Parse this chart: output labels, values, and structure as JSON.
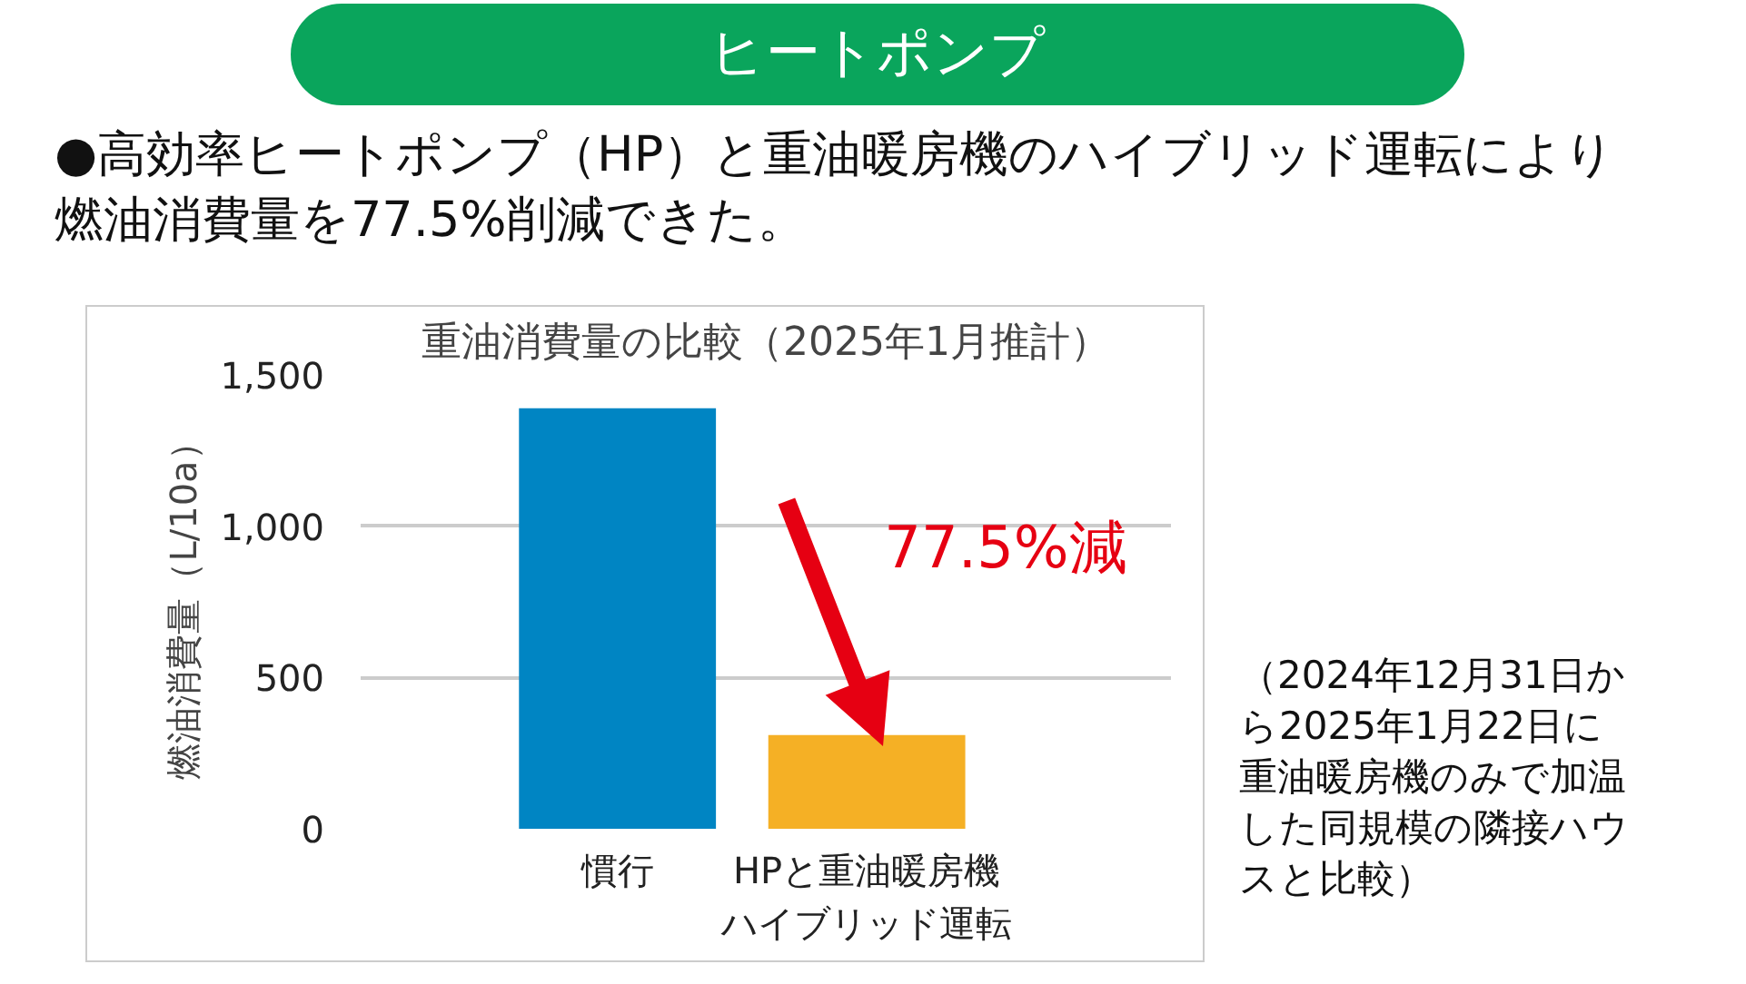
{
  "chart_data": {
    "type": "bar",
    "title": "重油消費量の比較（2025年1月推計）",
    "ylabel": "燃油消費量（L/10a）",
    "categories": [
      "慣行",
      "HPと重油暖房機ハイブリッド運転"
    ],
    "values": [
      1390,
      310
    ],
    "colors": [
      "#0085c3",
      "#f5b025"
    ],
    "ylim": [
      0,
      1500
    ],
    "yticks": [
      0,
      500,
      {
        "value": 1000,
        "label": "1,000"
      },
      {
        "value": 1500,
        "label": "1,500"
      }
    ],
    "grid": "y",
    "annotations": [
      "ヒートポンプ",
      "●高効率ヒートポンプ（HP）と重油暖房機のハイブリッド運転により燃油消費量を77.5%削減できた。",
      "77.5%減",
      "（2024年12月31日から2025年1月22日に重油暖房機のみで加温した同規模の隣接ハウスと比較）"
    ]
  }
}
